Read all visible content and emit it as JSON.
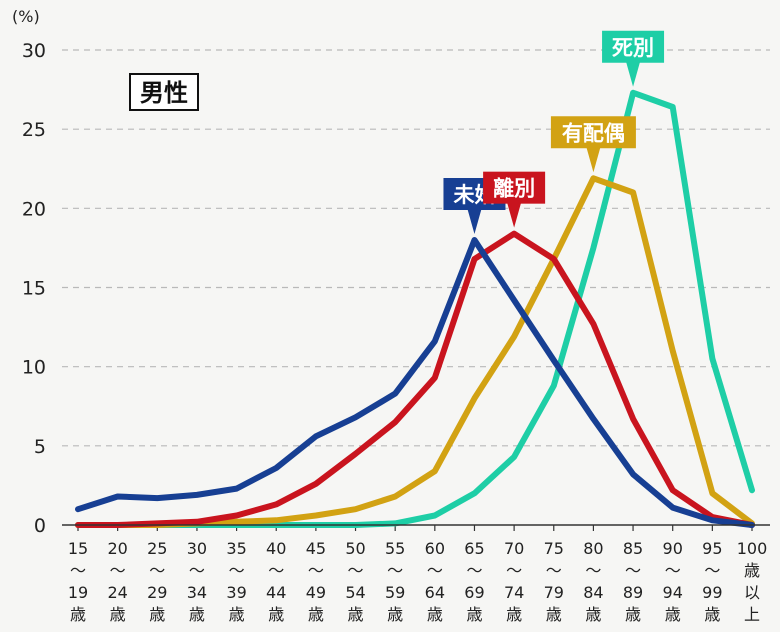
{
  "chart_data": {
    "type": "line",
    "unit_label": "(%)",
    "title_box": "男性",
    "ylim": [
      0,
      30
    ],
    "yticks": [
      0,
      5,
      10,
      15,
      20,
      25,
      30
    ],
    "grid": true,
    "categories": [
      {
        "lines": [
          "15",
          "〜",
          "19",
          "歳"
        ]
      },
      {
        "lines": [
          "20",
          "〜",
          "24",
          "歳"
        ]
      },
      {
        "lines": [
          "25",
          "〜",
          "29",
          "歳"
        ]
      },
      {
        "lines": [
          "30",
          "〜",
          "34",
          "歳"
        ]
      },
      {
        "lines": [
          "35",
          "〜",
          "39",
          "歳"
        ]
      },
      {
        "lines": [
          "40",
          "〜",
          "44",
          "歳"
        ]
      },
      {
        "lines": [
          "45",
          "〜",
          "49",
          "歳"
        ]
      },
      {
        "lines": [
          "50",
          "〜",
          "54",
          "歳"
        ]
      },
      {
        "lines": [
          "55",
          "〜",
          "59",
          "歳"
        ]
      },
      {
        "lines": [
          "60",
          "〜",
          "64",
          "歳"
        ]
      },
      {
        "lines": [
          "65",
          "〜",
          "69",
          "歳"
        ]
      },
      {
        "lines": [
          "70",
          "〜",
          "74",
          "歳"
        ]
      },
      {
        "lines": [
          "75",
          "〜",
          "79",
          "歳"
        ]
      },
      {
        "lines": [
          "80",
          "〜",
          "84",
          "歳"
        ]
      },
      {
        "lines": [
          "85",
          "〜",
          "89",
          "歳"
        ]
      },
      {
        "lines": [
          "90",
          "〜",
          "94",
          "歳"
        ]
      },
      {
        "lines": [
          "95",
          "〜",
          "99",
          "歳"
        ]
      },
      {
        "lines": [
          "100",
          "歳",
          "以",
          "上"
        ]
      }
    ],
    "series": [
      {
        "name": "未婚",
        "color": "#173f93",
        "label_at": 10,
        "values": [
          1.0,
          1.8,
          1.7,
          1.9,
          2.3,
          3.6,
          5.6,
          6.8,
          8.3,
          11.6,
          18.0,
          14.2,
          10.4,
          6.7,
          3.2,
          1.1,
          0.3,
          0.0
        ]
      },
      {
        "name": "離別",
        "color": "#c9141e",
        "label_at": 11,
        "values": [
          0.0,
          0.0,
          0.1,
          0.2,
          0.6,
          1.3,
          2.6,
          4.5,
          6.5,
          9.3,
          16.8,
          18.4,
          16.8,
          12.7,
          6.7,
          2.2,
          0.5,
          0.0
        ]
      },
      {
        "name": "有配偶",
        "color": "#d2a213",
        "label_at": 13,
        "values": [
          0.0,
          0.0,
          0.0,
          0.1,
          0.2,
          0.3,
          0.6,
          1.0,
          1.8,
          3.4,
          8.0,
          11.9,
          16.8,
          21.9,
          21.0,
          11.0,
          2.0,
          0.1
        ]
      },
      {
        "name": "死別",
        "color": "#1ecea6",
        "label_at": 14,
        "values": [
          0.0,
          0.0,
          0.0,
          0.0,
          0.0,
          0.0,
          0.0,
          0.0,
          0.1,
          0.6,
          2.0,
          4.3,
          8.8,
          17.5,
          27.3,
          26.4,
          10.5,
          2.2
        ]
      }
    ]
  }
}
